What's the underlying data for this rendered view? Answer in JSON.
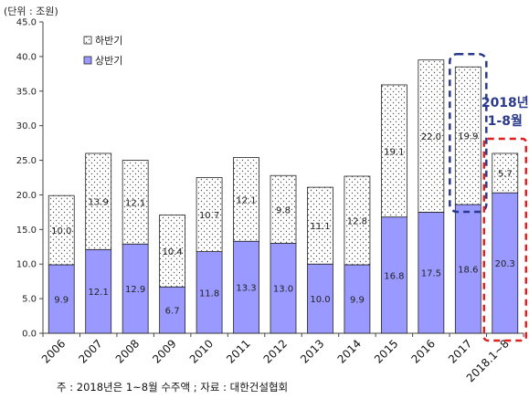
{
  "chart_data": {
    "type": "bar",
    "stacked": true,
    "unit_label": "(단위 : 조원)",
    "categories": [
      "2006",
      "2007",
      "2008",
      "2009",
      "2010",
      "2011",
      "2012",
      "2013",
      "2014",
      "2015",
      "2016",
      "2017",
      "2018.1~8"
    ],
    "series": [
      {
        "name": "상반기",
        "color": "#9999ff",
        "values": [
          9.9,
          12.1,
          12.9,
          6.7,
          11.8,
          13.3,
          13.0,
          10.0,
          9.9,
          16.8,
          17.5,
          18.6,
          20.3
        ],
        "labels": [
          "9.9",
          "12.1",
          "12.9",
          "6.7",
          "11.8",
          "13.3",
          "13.0",
          "10.0",
          "9.9",
          "16.8",
          "17.5",
          "18.6",
          "20.3"
        ]
      },
      {
        "name": "하반기",
        "color": "#ffffff",
        "pattern": "dots",
        "values": [
          10.0,
          13.9,
          12.1,
          10.4,
          10.7,
          12.1,
          9.8,
          11.1,
          12.8,
          19.1,
          22.0,
          19.9,
          5.7
        ],
        "labels": [
          "10.0",
          "13.9",
          "12.1",
          "10.4",
          "10.7",
          "12.1",
          "9.8",
          "11.1",
          "12.8",
          "19.1",
          "22.0",
          "19.9",
          "5.7"
        ]
      }
    ],
    "legend_order": [
      "하반기",
      "상반기"
    ],
    "ylim": [
      0,
      45
    ],
    "yticks": [
      "0.0",
      "5.0",
      "10.0",
      "15.0",
      "20.0",
      "25.0",
      "30.0",
      "35.0",
      "40.0",
      "45.0"
    ],
    "annotation": {
      "line1": "2018년",
      "line2": "1-8월",
      "color": "#2b3a8c"
    },
    "highlights": [
      {
        "category_index": 11,
        "color": "#2b3a8c",
        "style": "dashed"
      },
      {
        "category_index": 12,
        "color": "#e02020",
        "style": "dashed"
      }
    ]
  },
  "note": "주 : 2018년은 1~8월 수주액 ; 자료 : 대한건설협회"
}
